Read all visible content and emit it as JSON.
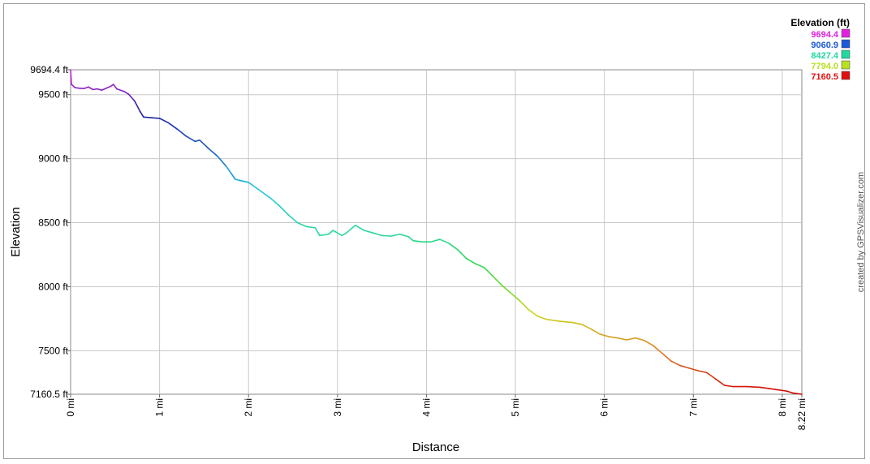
{
  "chart_data": {
    "type": "line",
    "xlabel": "Distance",
    "ylabel": "Elevation",
    "xlim": [
      0,
      8.22
    ],
    "ylim": [
      7160.5,
      9694.4
    ],
    "x_ticks": [
      {
        "v": 0,
        "label": "0 mi"
      },
      {
        "v": 1,
        "label": "1 mi"
      },
      {
        "v": 2,
        "label": "2 mi"
      },
      {
        "v": 3,
        "label": "3 mi"
      },
      {
        "v": 4,
        "label": "4 mi"
      },
      {
        "v": 5,
        "label": "5 mi"
      },
      {
        "v": 6,
        "label": "6 mi"
      },
      {
        "v": 7,
        "label": "7 mi"
      },
      {
        "v": 8,
        "label": "8 mi"
      },
      {
        "v": 8.22,
        "label": "8.22 mi"
      }
    ],
    "y_ticks": [
      {
        "v": 9694.4,
        "label": "9694.4 ft"
      },
      {
        "v": 9500,
        "label": "9500 ft"
      },
      {
        "v": 9000,
        "label": "9000 ft"
      },
      {
        "v": 8500,
        "label": "8500 ft"
      },
      {
        "v": 8000,
        "label": "8000 ft"
      },
      {
        "v": 7500,
        "label": "7500 ft"
      },
      {
        "v": 7160.5,
        "label": "7160.5 ft"
      }
    ],
    "grid": true,
    "legend": {
      "title": "Elevation (ft)",
      "placement": "top-right",
      "entries": [
        {
          "label": "9694.4",
          "color": "#e020e0"
        },
        {
          "label": "9060.9",
          "color": "#1a5ad8"
        },
        {
          "label": "8427.4",
          "color": "#20d8a0"
        },
        {
          "label": "7794.0",
          "color": "#b8e020"
        },
        {
          "label": "7160.5",
          "color": "#e01010"
        }
      ]
    },
    "color_scale": [
      {
        "v": 7160.5,
        "color": "#d00000"
      },
      {
        "v": 7450,
        "color": "#e07020"
      },
      {
        "v": 7794.0,
        "color": "#c8d818"
      },
      {
        "v": 8150,
        "color": "#30d848"
      },
      {
        "v": 8427.4,
        "color": "#28d8a0"
      },
      {
        "v": 8750,
        "color": "#20c8e0"
      },
      {
        "v": 9060.9,
        "color": "#1860c8"
      },
      {
        "v": 9350,
        "color": "#2020a0"
      },
      {
        "v": 9694.4,
        "color": "#e020e0"
      }
    ],
    "points": [
      [
        0.0,
        9694.4
      ],
      [
        0.01,
        9580
      ],
      [
        0.05,
        9555
      ],
      [
        0.1,
        9550
      ],
      [
        0.15,
        9548
      ],
      [
        0.2,
        9560
      ],
      [
        0.25,
        9540
      ],
      [
        0.3,
        9545
      ],
      [
        0.35,
        9535
      ],
      [
        0.4,
        9550
      ],
      [
        0.45,
        9565
      ],
      [
        0.48,
        9580
      ],
      [
        0.52,
        9545
      ],
      [
        0.6,
        9525
      ],
      [
        0.65,
        9505
      ],
      [
        0.72,
        9450
      ],
      [
        0.78,
        9370
      ],
      [
        0.82,
        9325
      ],
      [
        0.9,
        9320
      ],
      [
        1.0,
        9315
      ],
      [
        1.1,
        9280
      ],
      [
        1.2,
        9230
      ],
      [
        1.3,
        9175
      ],
      [
        1.4,
        9135
      ],
      [
        1.45,
        9145
      ],
      [
        1.55,
        9080
      ],
      [
        1.65,
        9020
      ],
      [
        1.75,
        8940
      ],
      [
        1.85,
        8840
      ],
      [
        1.9,
        8830
      ],
      [
        2.0,
        8815
      ],
      [
        2.05,
        8790
      ],
      [
        2.15,
        8740
      ],
      [
        2.25,
        8690
      ],
      [
        2.35,
        8630
      ],
      [
        2.45,
        8560
      ],
      [
        2.55,
        8500
      ],
      [
        2.65,
        8470
      ],
      [
        2.75,
        8460
      ],
      [
        2.8,
        8400
      ],
      [
        2.9,
        8410
      ],
      [
        2.95,
        8440
      ],
      [
        3.05,
        8400
      ],
      [
        3.1,
        8420
      ],
      [
        3.2,
        8480
      ],
      [
        3.3,
        8440
      ],
      [
        3.4,
        8420
      ],
      [
        3.5,
        8400
      ],
      [
        3.6,
        8395
      ],
      [
        3.7,
        8410
      ],
      [
        3.8,
        8390
      ],
      [
        3.85,
        8360
      ],
      [
        3.95,
        8350
      ],
      [
        4.05,
        8350
      ],
      [
        4.15,
        8370
      ],
      [
        4.25,
        8340
      ],
      [
        4.35,
        8290
      ],
      [
        4.45,
        8220
      ],
      [
        4.55,
        8180
      ],
      [
        4.65,
        8150
      ],
      [
        4.75,
        8080
      ],
      [
        4.85,
        8010
      ],
      [
        4.95,
        7950
      ],
      [
        5.05,
        7890
      ],
      [
        5.15,
        7820
      ],
      [
        5.25,
        7770
      ],
      [
        5.35,
        7745
      ],
      [
        5.5,
        7730
      ],
      [
        5.65,
        7720
      ],
      [
        5.75,
        7705
      ],
      [
        5.85,
        7670
      ],
      [
        5.95,
        7630
      ],
      [
        6.05,
        7610
      ],
      [
        6.15,
        7600
      ],
      [
        6.25,
        7585
      ],
      [
        6.35,
        7600
      ],
      [
        6.45,
        7580
      ],
      [
        6.55,
        7540
      ],
      [
        6.65,
        7480
      ],
      [
        6.75,
        7420
      ],
      [
        6.85,
        7385
      ],
      [
        6.95,
        7365
      ],
      [
        7.05,
        7345
      ],
      [
        7.15,
        7330
      ],
      [
        7.25,
        7280
      ],
      [
        7.35,
        7230
      ],
      [
        7.45,
        7220
      ],
      [
        7.6,
        7220
      ],
      [
        7.75,
        7215
      ],
      [
        7.85,
        7205
      ],
      [
        7.95,
        7195
      ],
      [
        8.05,
        7185
      ],
      [
        8.12,
        7170
      ],
      [
        8.22,
        7160.5
      ]
    ]
  },
  "credit": "created by GPSVisualizer.com"
}
